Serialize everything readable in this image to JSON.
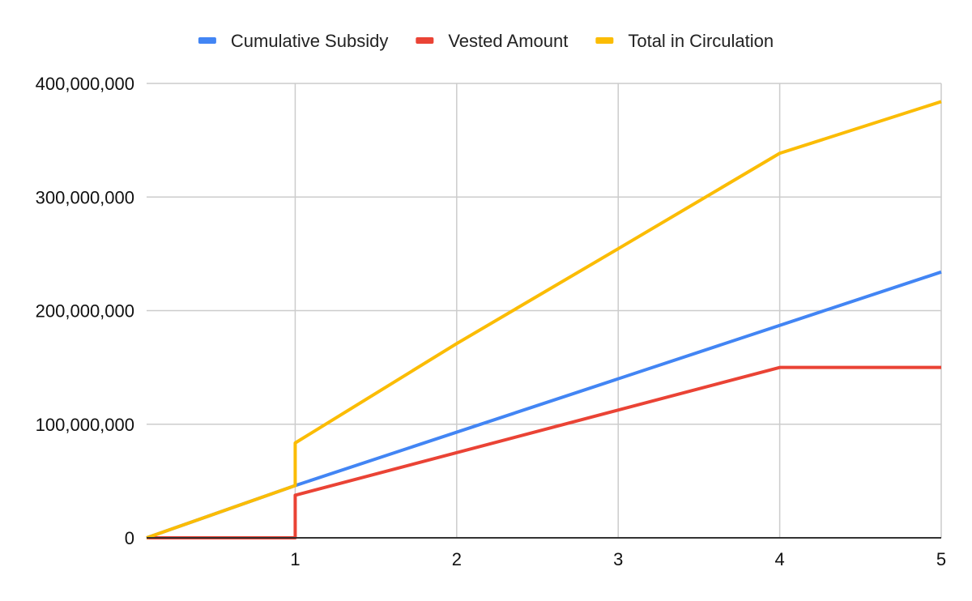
{
  "chart_data": {
    "type": "line",
    "title": "",
    "xlabel": "",
    "ylabel": "",
    "x_ticks": [
      1,
      2,
      3,
      4,
      5
    ],
    "x_tick_labels": [
      "1",
      "2",
      "3",
      "4",
      "5"
    ],
    "xlim": [
      0.08,
      5
    ],
    "y_ticks": [
      0,
      100000000,
      200000000,
      300000000,
      400000000
    ],
    "y_tick_labels": [
      "0",
      "100,000,000",
      "200,000,000",
      "300,000,000",
      "400,000,000"
    ],
    "ylim": [
      0,
      400000000
    ],
    "grid": true,
    "legend_position": "top-center",
    "series": [
      {
        "name": "Cumulative Subsidy",
        "color": "#4285F4",
        "points": [
          [
            0.08,
            0
          ],
          [
            1,
            46000000
          ],
          [
            5,
            234000000
          ]
        ]
      },
      {
        "name": "Vested Amount",
        "color": "#EA4335",
        "points": [
          [
            0.08,
            0
          ],
          [
            1,
            0
          ],
          [
            1,
            37500000
          ],
          [
            4,
            150000000
          ],
          [
            5,
            150000000
          ]
        ]
      },
      {
        "name": "Total in Circulation",
        "color": "#FBBC04",
        "points": [
          [
            0.08,
            0
          ],
          [
            1,
            46000000
          ],
          [
            1,
            83500000
          ],
          [
            2,
            171000000
          ],
          [
            3,
            254500000
          ],
          [
            4,
            338500000
          ],
          [
            5,
            384000000
          ]
        ]
      }
    ]
  }
}
